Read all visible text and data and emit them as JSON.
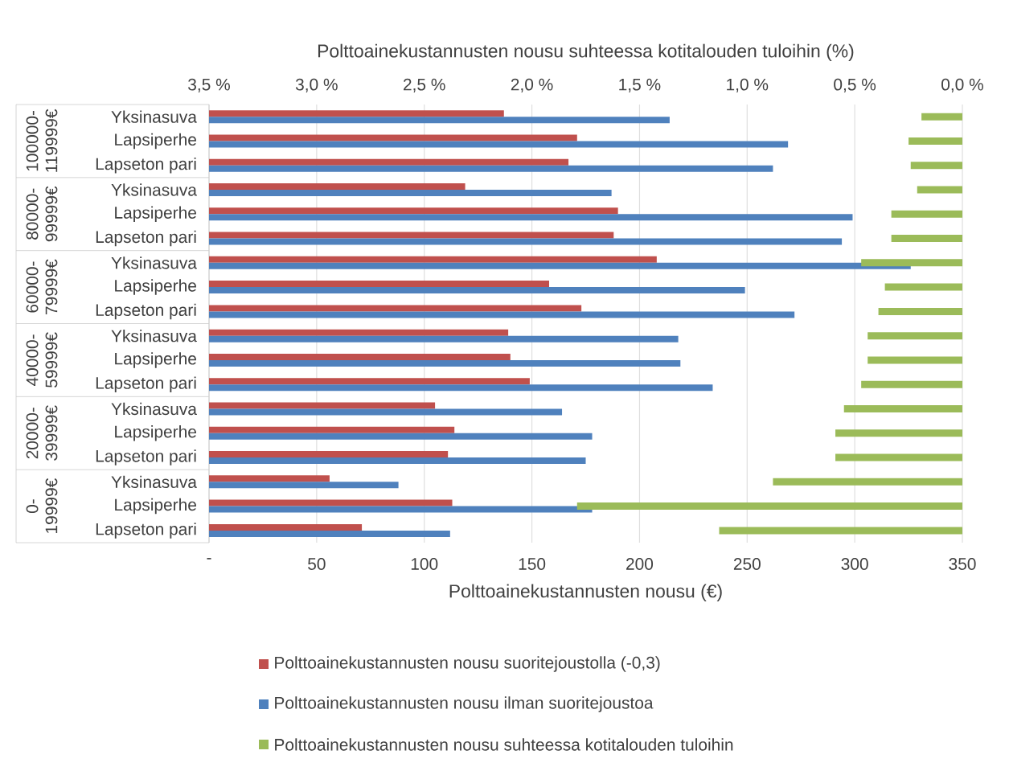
{
  "chart_data": {
    "type": "bar",
    "orientation": "horizontal",
    "categories": [
      "Yksinasuva",
      "Lapsiperhe",
      "Lapseton pari",
      "Yksinasuva",
      "Lapsiperhe",
      "Lapseton pari",
      "Yksinasuva",
      "Lapsiperhe",
      "Lapseton pari",
      "Yksinasuva",
      "Lapsiperhe",
      "Lapseton pari",
      "Yksinasuva",
      "Lapsiperhe",
      "Lapseton pari",
      "Yksinasuva",
      "Lapsiperhe",
      "Lapseton pari"
    ],
    "series": [
      {
        "name": "Polttoainekustannusten nousu suoritejoustolla (-0,3)",
        "color": "#c0504d",
        "values": [
          137,
          171,
          167,
          119,
          190,
          188,
          208,
          158,
          173,
          139,
          140,
          149,
          105,
          114,
          111,
          56,
          113,
          71
        ]
      },
      {
        "name": "Polttoainekustannusten nousu ilman suoritejoustoa",
        "color": "#4f81bd",
        "values": [
          214,
          269,
          262,
          187,
          299,
          294,
          326,
          249,
          272,
          218,
          219,
          234,
          164,
          178,
          175,
          88,
          178,
          112
        ]
      },
      {
        "name": "Polttoainekustannusten nousu suhteessa kotitalouden tuloihin",
        "color": "#9bbb59",
        "axis": "x2",
        "values": [
          0.19,
          0.25,
          0.24,
          0.21,
          0.33,
          0.33,
          0.47,
          0.36,
          0.39,
          0.44,
          0.44,
          0.47,
          0.55,
          0.59,
          0.59,
          0.88,
          1.79,
          1.13
        ]
      }
    ],
    "xlabel": "Polttoainekustannusten nousu (€)",
    "x2label": "Polttoainekustannusten nousu suhteessa kotitalouden tuloihin (%)",
    "xlim": [
      0,
      350
    ],
    "xticks": [
      {
        "value": 0,
        "label": "-"
      },
      50,
      100,
      150,
      200,
      250,
      300,
      350
    ],
    "x2lim": [
      3.5,
      0
    ],
    "x2ticks": [
      {
        "value": 3.5,
        "label": "3,5 %"
      },
      {
        "value": 3.0,
        "label": "3,0 %"
      },
      {
        "value": 2.5,
        "label": "2,5 %"
      },
      {
        "value": 2.0,
        "label": "2,0 %"
      },
      {
        "value": 1.5,
        "label": "1,5 %"
      },
      {
        "value": 1.0,
        "label": "1,0 %"
      },
      {
        "value": 0.5,
        "label": "0,5 %"
      },
      {
        "value": 0.0,
        "label": "0,0 %"
      }
    ],
    "annotations": [
      "100000-119999€",
      "80000-99999€",
      "60000-79999€",
      "40000-59999€",
      "20000-39999€",
      "0-19999€"
    ],
    "grid": "x",
    "legend": "bottom"
  }
}
